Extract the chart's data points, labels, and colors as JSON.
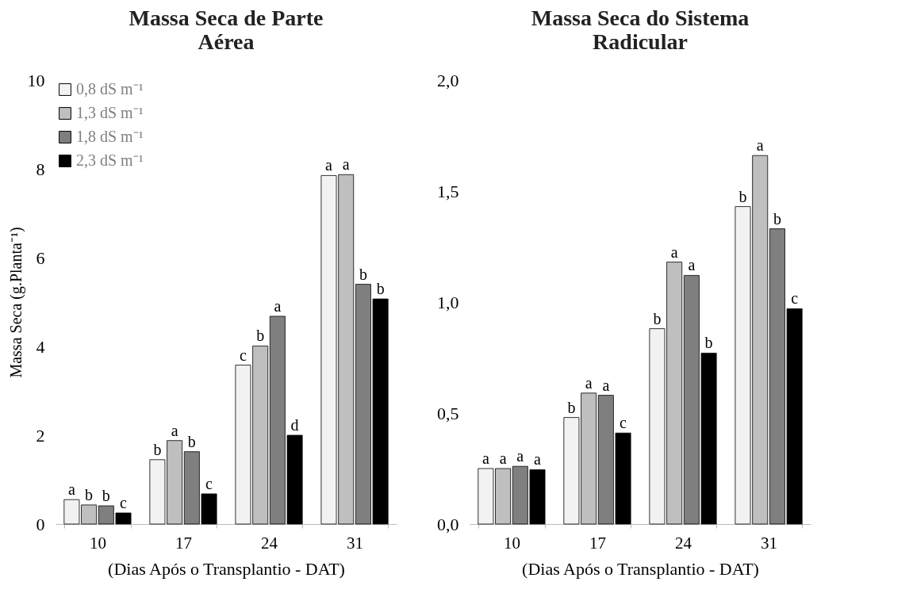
{
  "chart_data": [
    {
      "type": "bar",
      "title": "Massa Seca de Parte Aérea",
      "xlabel": "(Dias Após o Transplantio - DAT)",
      "ylabel": "Massa Seca (g.Planta⁻¹)",
      "categories": [
        "10",
        "17",
        "24",
        "31"
      ],
      "ylim": [
        0,
        10
      ],
      "yticks": [
        0,
        2,
        4,
        6,
        8,
        10
      ],
      "grid": false,
      "legend": "top left",
      "series": [
        {
          "name": "0,8 dS m⁻¹",
          "color": "#f2f2f2",
          "values": [
            0.55,
            1.45,
            3.58,
            7.85
          ],
          "value_labels": [
            "a",
            "b",
            "c",
            "a"
          ]
        },
        {
          "name": "1,3 dS m⁻¹",
          "color": "#bfbfbf",
          "values": [
            0.43,
            1.88,
            4.01,
            7.87
          ],
          "value_labels": [
            "b",
            "a",
            "b",
            "a"
          ]
        },
        {
          "name": "1,8 dS m⁻¹",
          "color": "#7f7f7f",
          "values": [
            0.41,
            1.63,
            4.68,
            5.4
          ],
          "value_labels": [
            "b",
            "b",
            "a",
            "b"
          ]
        },
        {
          "name": "2,3 dS m⁻¹",
          "color": "#000000",
          "values": [
            0.25,
            0.68,
            2.0,
            5.07
          ],
          "value_labels": [
            "c",
            "c",
            "d",
            "b"
          ]
        }
      ]
    },
    {
      "type": "bar",
      "title": "Massa Seca do Sistema Radicular",
      "xlabel": "(Dias Após o Transplantio - DAT)",
      "categories": [
        "10",
        "17",
        "24",
        "31"
      ],
      "ylim": [
        0,
        2
      ],
      "yticks": [
        {
          "value": 0,
          "label": "0,0"
        },
        {
          "value": 0.5,
          "label": "0,5"
        },
        {
          "value": 1,
          "label": "1,0"
        },
        {
          "value": 1.5,
          "label": "1,5"
        },
        {
          "value": 2,
          "label": "2,0"
        }
      ],
      "grid": false,
      "series": [
        {
          "color": "#ffffff",
          "values": [
            0.25,
            0.48,
            0.88,
            1.43
          ],
          "value_labels": [
            "a",
            "b",
            "b",
            "b"
          ]
        },
        {
          "color": "#bfbfbf",
          "values": [
            0.25,
            0.59,
            1.18,
            1.66
          ],
          "value_labels": [
            "a",
            "a",
            "a",
            "a"
          ]
        },
        {
          "color": "#7f7f7f",
          "values": [
            0.26,
            0.58,
            1.12,
            1.33
          ],
          "value_labels": [
            "a",
            "a",
            "a",
            "b"
          ]
        },
        {
          "color": "#000000",
          "values": [
            0.245,
            0.41,
            0.77,
            0.97
          ],
          "value_labels": [
            "a",
            "c",
            "b",
            "c"
          ]
        }
      ]
    }
  ]
}
